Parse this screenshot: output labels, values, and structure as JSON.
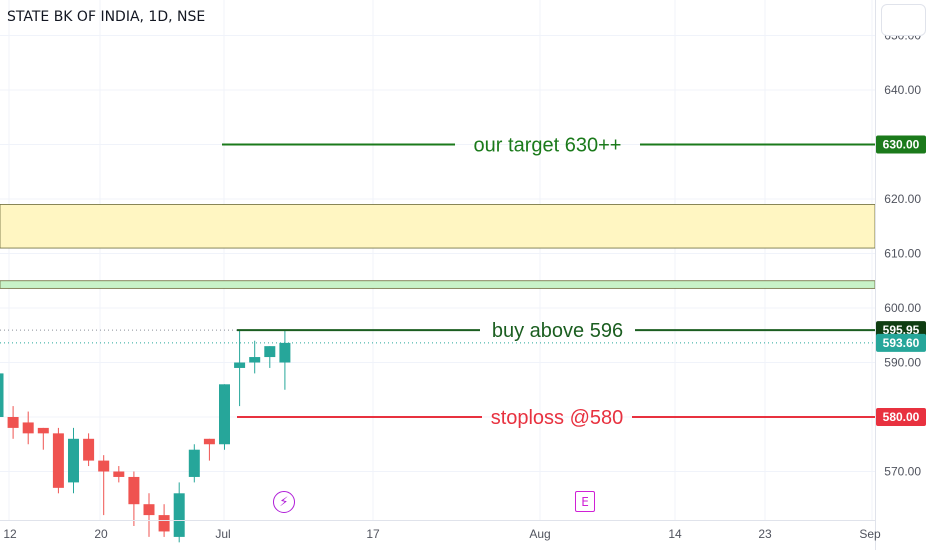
{
  "title": "STATE BK OF INDIA, 1D, NSE",
  "chart_data": {
    "type": "candlestick",
    "y_range": [
      562,
      656
    ],
    "y_ticks": [
      "650.00",
      "640.00",
      "620.00",
      "610.00",
      "600.00",
      "590.00",
      "570.00"
    ],
    "x_ticks": [
      "12",
      "20",
      "Jul",
      "17",
      "Aug",
      "14",
      "23",
      "Sep"
    ],
    "candles": [
      {
        "o": 580,
        "h": 590,
        "l": 578,
        "c": 588
      },
      {
        "o": 580,
        "h": 582,
        "l": 576,
        "c": 578
      },
      {
        "o": 579,
        "h": 581,
        "l": 575,
        "c": 577
      },
      {
        "o": 578,
        "h": 578,
        "l": 574,
        "c": 577
      },
      {
        "o": 577,
        "h": 578,
        "l": 566,
        "c": 567
      },
      {
        "o": 568,
        "h": 578,
        "l": 566,
        "c": 576
      },
      {
        "o": 576,
        "h": 577,
        "l": 571,
        "c": 572
      },
      {
        "o": 572,
        "h": 573,
        "l": 562,
        "c": 570
      },
      {
        "o": 570,
        "h": 571,
        "l": 568,
        "c": 569
      },
      {
        "o": 569,
        "h": 570,
        "l": 560,
        "c": 564
      },
      {
        "o": 564,
        "h": 566,
        "l": 558,
        "c": 562
      },
      {
        "o": 562,
        "h": 564,
        "l": 558,
        "c": 559
      },
      {
        "o": 558,
        "h": 568,
        "l": 557,
        "c": 566
      },
      {
        "o": 569,
        "h": 575,
        "l": 568,
        "c": 574
      },
      {
        "o": 576,
        "h": 576,
        "l": 572,
        "c": 575
      },
      {
        "o": 575,
        "h": 586,
        "l": 574,
        "c": 586
      },
      {
        "o": 589,
        "h": 596,
        "l": 582,
        "c": 590
      },
      {
        "o": 590,
        "h": 594,
        "l": 588,
        "c": 591
      },
      {
        "o": 591,
        "h": 593,
        "l": 589,
        "c": 593
      },
      {
        "o": 590,
        "h": 596,
        "l": 585,
        "c": 593.6
      }
    ],
    "levels": [
      {
        "label": "our target 630++",
        "price": 630,
        "badge": "630.00",
        "color": "#1b7a1b"
      },
      {
        "label": "buy above 596",
        "price": 595.95,
        "badge": "595.95",
        "color": "#1b5e20"
      },
      {
        "label": "stoploss @580",
        "price": 580,
        "badge": "580.00",
        "color": "#e8313f"
      }
    ],
    "current_price": {
      "price": 593.6,
      "badge": "593.60"
    },
    "zones": [
      {
        "from": 611,
        "to": 619,
        "color": "#fff6c2"
      },
      {
        "from": 603.6,
        "to": 605,
        "color": "#c8f2c8"
      }
    ]
  },
  "events": {
    "flash_icon": "lightning-icon",
    "earnings_label": "E"
  },
  "colors": {
    "up": "#26a69a",
    "down": "#ef5350",
    "target": "#1b7a1b",
    "stop": "#e8313f"
  }
}
